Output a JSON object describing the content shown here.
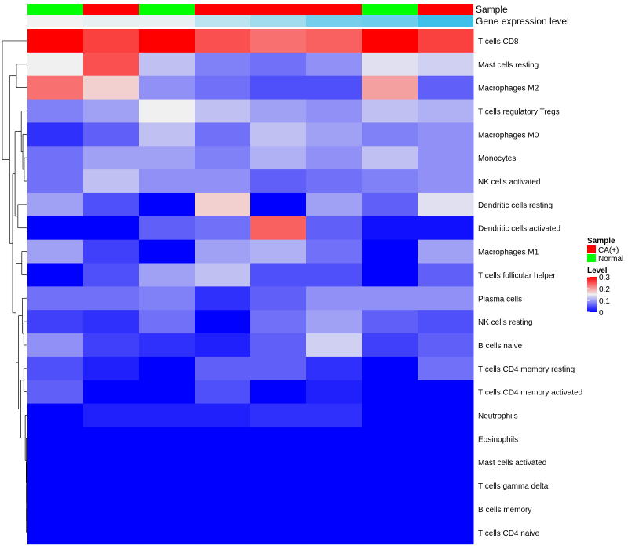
{
  "chart_data": {
    "type": "heatmap",
    "annotation_tracks": {
      "sample_label": "Sample",
      "expression_label": "Gene expression level",
      "sample": [
        "Normal",
        "CA(+)",
        "Normal",
        "CA(+)",
        "CA(+)",
        "CA(+)",
        "Normal",
        "CA(+)"
      ],
      "gene_expression_level": [
        0.0,
        0.05,
        0.05,
        0.3,
        0.45,
        0.7,
        0.75,
        1.0
      ]
    },
    "rows": [
      "T cells CD8",
      "Mast cells resting",
      "Macrophages M2",
      "T cells regulatory  Tregs",
      "Macrophages M0",
      "Monocytes",
      "NK cells activated",
      "Dendritic cells resting",
      "Dendritic cells activated",
      "Macrophages M1",
      "T cells follicular helper",
      "Plasma cells",
      "NK cells resting",
      "B cells naive",
      "T cells CD4 memory resting",
      "T cells CD4 memory activated",
      "Neutrophils",
      "Eosinophils",
      "Mast cells activated",
      "T cells gamma delta",
      "B cells memory",
      "T cells CD4 naive"
    ],
    "values": [
      [
        0.3,
        0.26,
        0.3,
        0.25,
        0.23,
        0.24,
        0.3,
        0.26
      ],
      [
        0.15,
        0.25,
        0.12,
        0.08,
        0.07,
        0.09,
        0.14,
        0.13
      ],
      [
        0.23,
        0.17,
        0.09,
        0.07,
        0.05,
        0.05,
        0.2,
        0.06
      ],
      [
        0.08,
        0.1,
        0.15,
        0.12,
        0.1,
        0.09,
        0.12,
        0.11
      ],
      [
        0.03,
        0.06,
        0.12,
        0.07,
        0.12,
        0.1,
        0.08,
        0.09
      ],
      [
        0.07,
        0.1,
        0.1,
        0.08,
        0.11,
        0.09,
        0.12,
        0.09
      ],
      [
        0.07,
        0.12,
        0.09,
        0.09,
        0.06,
        0.07,
        0.08,
        0.09
      ],
      [
        0.1,
        0.05,
        0.0,
        0.17,
        0.0,
        0.1,
        0.06,
        0.14
      ],
      [
        0.0,
        0.0,
        0.06,
        0.07,
        0.24,
        0.06,
        0.01,
        0.01
      ],
      [
        0.1,
        0.04,
        0.0,
        0.1,
        0.11,
        0.07,
        0.0,
        0.1
      ],
      [
        0.0,
        0.05,
        0.1,
        0.12,
        0.05,
        0.05,
        0.0,
        0.06
      ],
      [
        0.07,
        0.07,
        0.08,
        0.03,
        0.06,
        0.09,
        0.09,
        0.09
      ],
      [
        0.04,
        0.03,
        0.07,
        0.0,
        0.07,
        0.1,
        0.06,
        0.05
      ],
      [
        0.09,
        0.04,
        0.03,
        0.02,
        0.06,
        0.13,
        0.04,
        0.06
      ],
      [
        0.05,
        0.02,
        0.0,
        0.06,
        0.06,
        0.03,
        0.0,
        0.07
      ],
      [
        0.06,
        0.0,
        0.0,
        0.05,
        0.0,
        0.02,
        0.0,
        0.0
      ],
      [
        0.0,
        0.02,
        0.02,
        0.02,
        0.03,
        0.03,
        0.0,
        0.0
      ],
      [
        0.0,
        0.0,
        0.0,
        0.0,
        0.0,
        0.0,
        0.0,
        0.0
      ],
      [
        0.0,
        0.0,
        0.0,
        0.0,
        0.0,
        0.0,
        0.0,
        0.0
      ],
      [
        0.0,
        0.0,
        0.0,
        0.0,
        0.0,
        0.0,
        0.0,
        0.0
      ],
      [
        0.0,
        0.0,
        0.0,
        0.0,
        0.0,
        0.0,
        0.0,
        0.0
      ],
      [
        0.0,
        0.0,
        0.0,
        0.0,
        0.0,
        0.0,
        0.0,
        0.0
      ]
    ],
    "color_scale": {
      "low": "#0000ff",
      "mid": "#f0f0f0",
      "high": "#ff0000",
      "min": 0,
      "mid_value": 0.15,
      "max": 0.3
    },
    "legend": {
      "sample_title": "Sample",
      "sample_items": [
        {
          "label": "CA(+)",
          "color": "#ff0000"
        },
        {
          "label": "Normal",
          "color": "#00ff00"
        }
      ],
      "level_title": "Level",
      "level_ticks": [
        "0.3",
        "0.2",
        "0.1",
        "0"
      ],
      "level_tick_values": [
        0.3,
        0.2,
        0.1,
        0
      ]
    },
    "expression_colors": {
      "low": "#f2f2f2",
      "high": "#3fc0ea"
    },
    "row_dendrogram": true
  }
}
